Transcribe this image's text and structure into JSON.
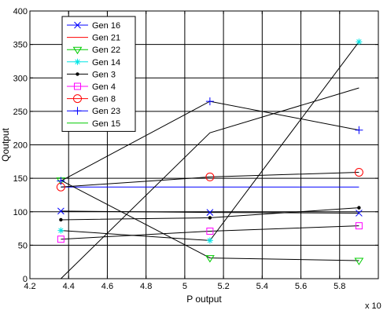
{
  "chart_data": {
    "type": "line",
    "title": "",
    "xlabel": "P output",
    "ylabel": "Qoutput",
    "x_multiplier": "x 10",
    "x_multiplier_exponent": "",
    "xlim": [
      4.2,
      6.0
    ],
    "ylim": [
      0,
      400
    ],
    "xticks": [
      4.2,
      4.4,
      4.6,
      4.8,
      5,
      5.2,
      5.4,
      5.6,
      5.8
    ],
    "xtick_labels": [
      "4.2",
      "4.4",
      "4.6",
      "4.8",
      "5",
      "5.2",
      "5.4",
      "5.6",
      "5.8"
    ],
    "yticks": [
      0,
      50,
      100,
      150,
      200,
      250,
      300,
      350,
      400
    ],
    "ytick_labels": [
      "0",
      "50",
      "100",
      "150",
      "200",
      "250",
      "300",
      "350",
      "400"
    ],
    "grid": true,
    "legend_position": "top-left",
    "x": [
      4.36,
      5.13,
      5.9
    ],
    "series": [
      {
        "name": "Gen 16",
        "color": "#0000ff",
        "marker": "x",
        "line_color": "#000000",
        "values": [
          101,
          99,
          98
        ]
      },
      {
        "name": "Gen 21",
        "color": "#ff0000",
        "marker": "none",
        "line_color": "#000000",
        "values": [
          0,
          218,
          285
        ]
      },
      {
        "name": "Gen 22",
        "color": "#00cc00",
        "marker": "triangle-down",
        "line_color": "#000000",
        "values": [
          147,
          31,
          27
        ]
      },
      {
        "name": "Gen 14",
        "color": "#00e5e5",
        "marker": "star",
        "line_color": "#000000",
        "values": [
          72,
          57,
          354
        ]
      },
      {
        "name": "Gen 3",
        "color": "#000000",
        "marker": "dot",
        "line_color": "#000000",
        "values": [
          88,
          91,
          106
        ]
      },
      {
        "name": "Gen 4",
        "color": "#ff00ff",
        "marker": "square",
        "line_color": "#000000",
        "values": [
          59,
          71,
          79
        ]
      },
      {
        "name": "Gen 8",
        "color": "#ff0000",
        "marker": "circle",
        "line_color": "#000000",
        "values": [
          137,
          152,
          159
        ]
      },
      {
        "name": "Gen 23",
        "color": "#0000ff",
        "marker": "plus",
        "line_color": "#000000",
        "values": [
          146,
          265,
          222
        ]
      },
      {
        "name": "Gen 15",
        "color": "#00cc00",
        "marker": "none",
        "line_color": "#000000",
        "values": [
          null,
          null,
          null
        ]
      }
    ],
    "reference_lines": [
      {
        "value": 137,
        "color": "#0000ff",
        "from_x": 4.36,
        "to_x": 5.9
      }
    ]
  }
}
